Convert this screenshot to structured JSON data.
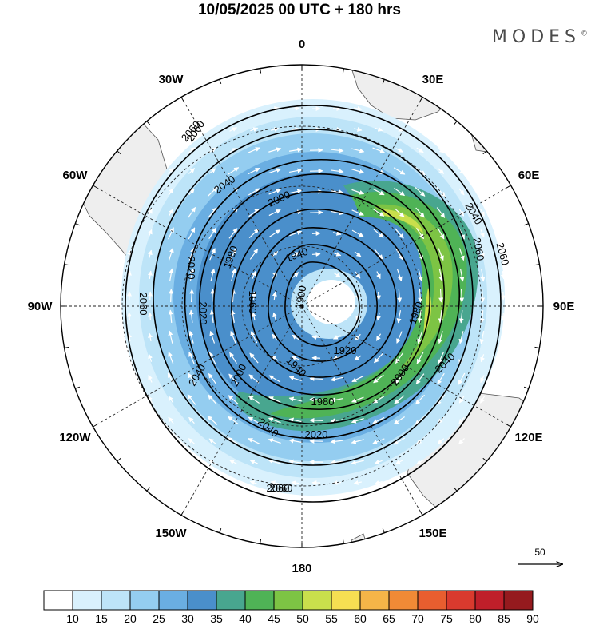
{
  "header": {
    "title": "10/05/2025  00 UTC  + 180 hrs",
    "brand": "MODES",
    "brand_mark": "©"
  },
  "map": {
    "projection": "south polar stereographic",
    "longitude_labels": [
      "0",
      "30E",
      "60E",
      "90E",
      "120E",
      "150E",
      "180",
      "150W",
      "120W",
      "90W",
      "60W",
      "30W"
    ],
    "contour_labels": [
      "2060",
      "2040",
      "2060",
      "2040",
      "2000",
      "2040",
      "2060",
      "1980",
      "1940",
      "2020",
      "1900",
      "2060",
      "2020",
      "1980",
      "1960",
      "1920",
      "1940",
      "2000",
      "2040",
      "1980",
      "2060",
      "2060",
      "2000",
      "2020",
      "2040",
      "2060"
    ],
    "colors": {
      "land": "#eeeeee",
      "ocean": "#ffffff",
      "contour": "#000000",
      "wind_vector": "#ffffff"
    }
  },
  "reference_vector": {
    "label": "50"
  },
  "colorbar": {
    "labels": [
      "10",
      "15",
      "20",
      "25",
      "30",
      "35",
      "40",
      "45",
      "50",
      "55",
      "60",
      "65",
      "70",
      "75",
      "80",
      "85",
      "90"
    ],
    "colors": [
      "#ffffff",
      "#d9f1fd",
      "#bde4f8",
      "#94cdf0",
      "#6aaee2",
      "#4a8fcb",
      "#48a68f",
      "#4fb356",
      "#7dc444",
      "#c9df4c",
      "#f6df52",
      "#f5b548",
      "#f18a36",
      "#e85e2f",
      "#d93a2e",
      "#bf1f2a",
      "#951a1e"
    ]
  }
}
